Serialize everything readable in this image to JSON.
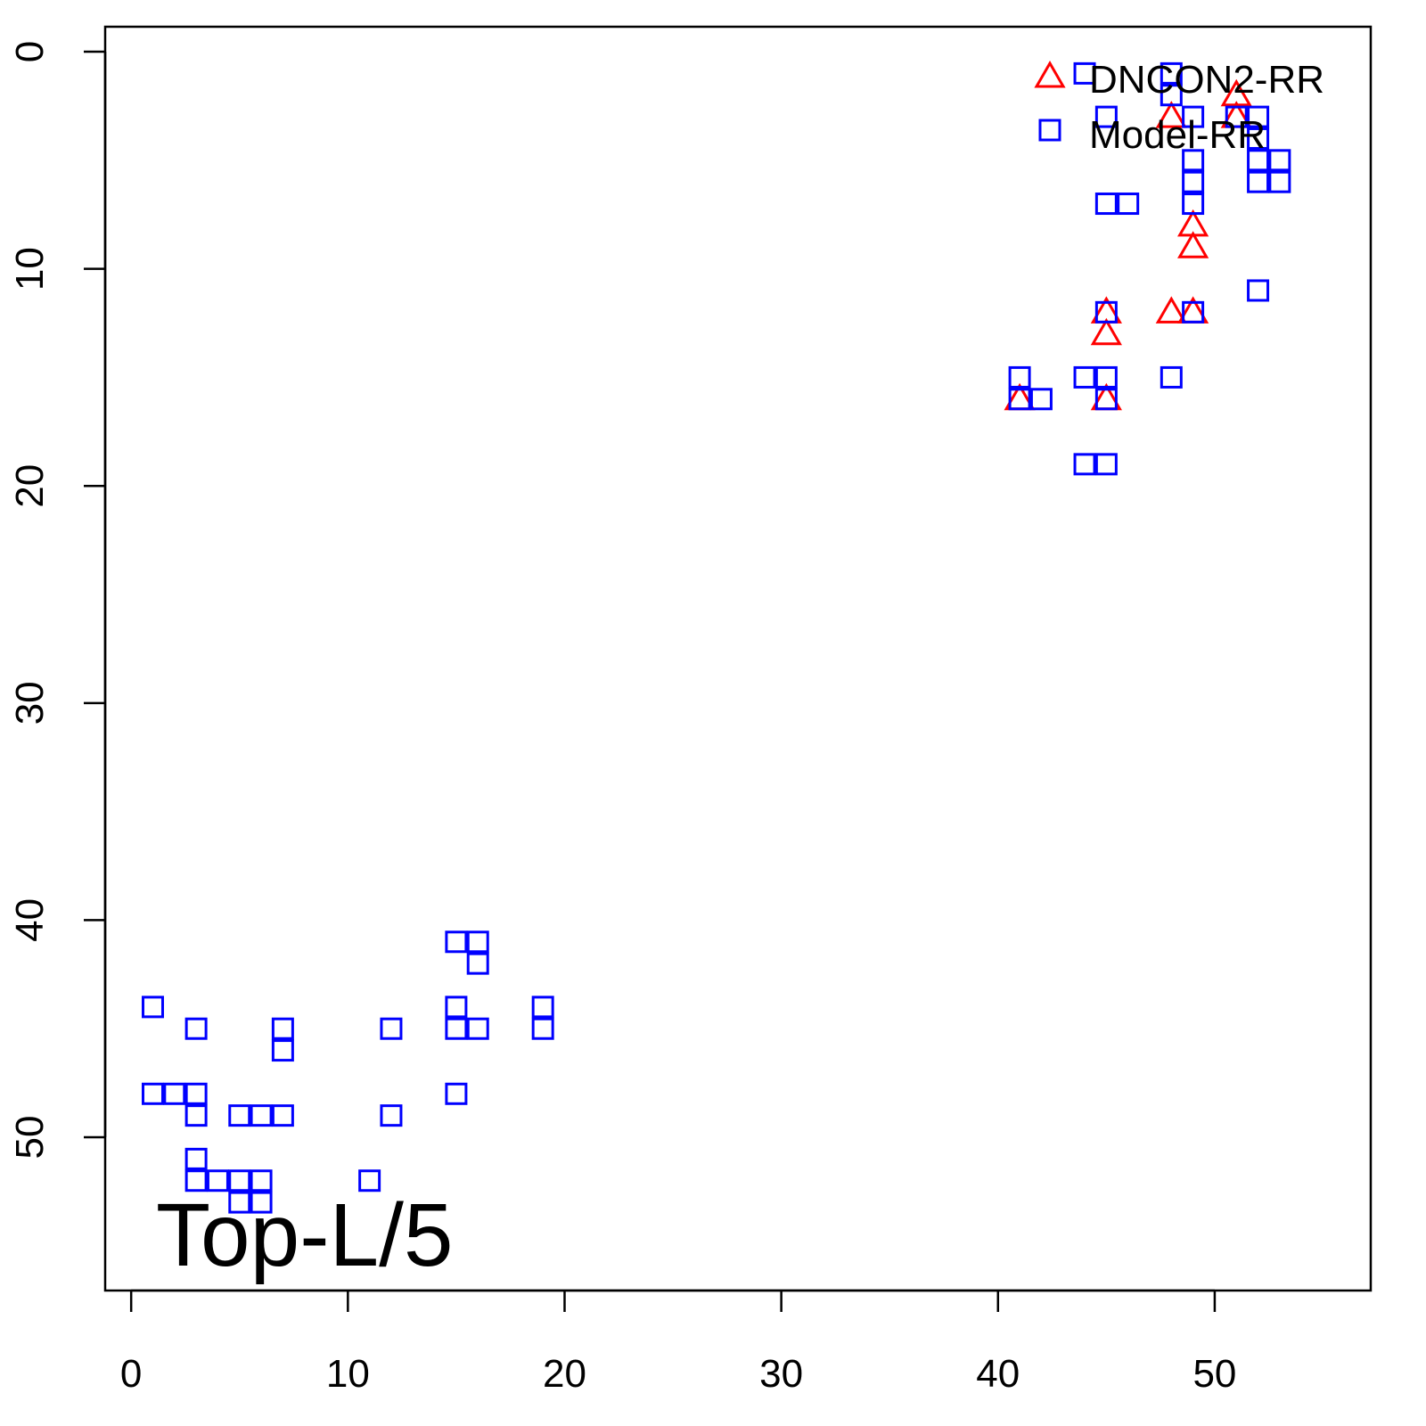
{
  "chart_data": {
    "type": "scatter",
    "annotation": "Top-L/5",
    "xlim": [
      -1.2,
      57.2
    ],
    "ylim": [
      57.06,
      -1.15
    ],
    "xticks": [
      0,
      10,
      20,
      30,
      40,
      50
    ],
    "yticks": [
      0,
      10,
      20,
      30,
      40,
      50
    ],
    "legend": "topright",
    "series": [
      {
        "name": "DNCON2-RR",
        "color": "#ff0000",
        "marker": "triangle",
        "x": [
          51,
          48,
          51,
          49,
          49,
          45,
          48,
          49,
          45,
          41,
          45
        ],
        "y": [
          2,
          3,
          3,
          8,
          9,
          12,
          12,
          12,
          13,
          16,
          16
        ]
      },
      {
        "name": "Model-RR",
        "color": "#0000ff",
        "marker": "square",
        "x": [
          1,
          1,
          2,
          3,
          3,
          3,
          3,
          3,
          4,
          5,
          5,
          5,
          6,
          6,
          6,
          7,
          7,
          7,
          11,
          12,
          12,
          15,
          15,
          15,
          15,
          16,
          16,
          16,
          19,
          19,
          44,
          48,
          48,
          45,
          49,
          51,
          52,
          52,
          49,
          49,
          49,
          52,
          52,
          53,
          53,
          45,
          46,
          52,
          45,
          49,
          41,
          44,
          45,
          48,
          41,
          42,
          45,
          44,
          45
        ],
        "y": [
          44,
          48,
          48,
          45,
          48,
          49,
          51,
          52,
          52,
          49,
          52,
          53,
          49,
          52,
          53,
          45,
          46,
          49,
          52,
          45,
          49,
          41,
          44,
          45,
          48,
          41,
          42,
          45,
          44,
          45,
          1,
          1,
          2,
          3,
          3,
          3,
          3,
          4,
          5,
          6,
          7,
          5,
          6,
          5,
          6,
          7,
          7,
          11,
          12,
          12,
          15,
          15,
          15,
          15,
          16,
          16,
          16,
          19,
          19
        ]
      }
    ]
  }
}
